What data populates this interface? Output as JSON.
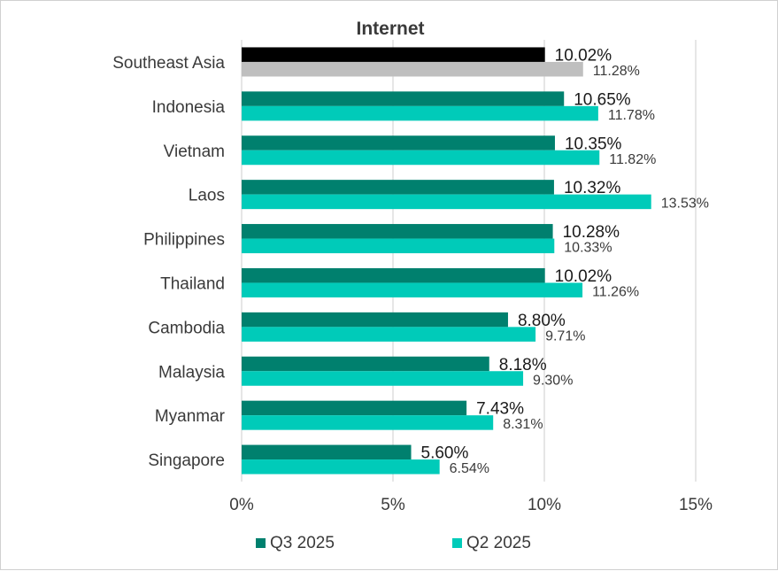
{
  "chart_data": {
    "type": "bar",
    "orientation": "horizontal",
    "title": "Internet",
    "categories": [
      "Southeast Asia",
      "Indonesia",
      "Vietnam",
      "Laos",
      "Philippines",
      "Thailand",
      "Cambodia",
      "Malaysia",
      "Myanmar",
      "Singapore"
    ],
    "series": [
      {
        "name": "Q3 2025",
        "color": "#00806e",
        "highlight_color": "#000000",
        "values": [
          10.02,
          10.65,
          10.35,
          10.32,
          10.28,
          10.02,
          8.8,
          8.18,
          7.43,
          5.6
        ],
        "labels": [
          "10.02%",
          "10.65%",
          "10.35%",
          "10.32%",
          "10.28%",
          "10.02%",
          "8.80%",
          "8.18%",
          "7.43%",
          "5.60%"
        ]
      },
      {
        "name": "Q2 2025",
        "color": "#00cbb9",
        "highlight_color": "#bfbfbf",
        "values": [
          11.28,
          11.78,
          11.82,
          13.53,
          10.33,
          11.26,
          9.71,
          9.3,
          8.31,
          6.54
        ],
        "labels": [
          "11.28%",
          "11.78%",
          "11.82%",
          "13.53%",
          "10.33%",
          "11.26%",
          "9.71%",
          "9.30%",
          "8.31%",
          "6.54%"
        ]
      }
    ],
    "highlight_category": "Southeast Asia",
    "xlim": [
      0,
      15
    ],
    "xticks": [
      0,
      5,
      10,
      15
    ],
    "xtick_labels": [
      "0%",
      "5%",
      "10%",
      "15%"
    ],
    "grid": "vertical",
    "grid_color": "#d9d9d9",
    "legend_position": "bottom"
  }
}
